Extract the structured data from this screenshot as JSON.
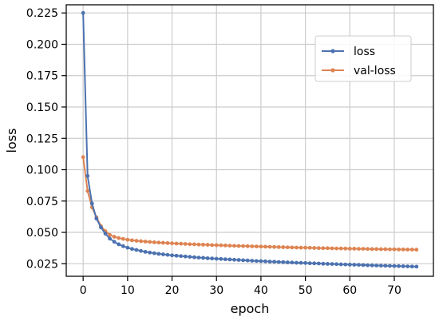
{
  "chart_data": {
    "type": "line",
    "xlabel": "epoch",
    "ylabel": "loss",
    "xlim": [
      -3.8,
      78.8
    ],
    "ylim": [
      0.015,
      0.2315
    ],
    "xticks": [
      0,
      10,
      20,
      30,
      40,
      50,
      60,
      70
    ],
    "yticks": [
      0.025,
      0.05,
      0.075,
      0.1,
      0.125,
      0.15,
      0.175,
      0.2,
      0.225
    ],
    "ytick_labels": [
      "0.025",
      "0.050",
      "0.075",
      "0.100",
      "0.125",
      "0.150",
      "0.175",
      "0.200",
      "0.225"
    ],
    "grid": true,
    "legend_position": "top-right",
    "series": [
      {
        "name": "loss",
        "color": "#4c72b0",
        "values": [
          0.225,
          0.095,
          0.073,
          0.061,
          0.054,
          0.049,
          0.045,
          0.0425,
          0.0405,
          0.039,
          0.0378,
          0.0368,
          0.036,
          0.0352,
          0.0345,
          0.0339,
          0.0334,
          0.0329,
          0.0325,
          0.0321,
          0.0317,
          0.0314,
          0.0311,
          0.0308,
          0.0305,
          0.0302,
          0.0299,
          0.0297,
          0.0294,
          0.0292,
          0.029,
          0.0288,
          0.0286,
          0.0284,
          0.0282,
          0.028,
          0.0278,
          0.0276,
          0.0274,
          0.0272,
          0.0271,
          0.0269,
          0.0267,
          0.0266,
          0.0264,
          0.0263,
          0.0261,
          0.026,
          0.0258,
          0.0257,
          0.0256,
          0.0254,
          0.0253,
          0.0252,
          0.025,
          0.0249,
          0.0248,
          0.0247,
          0.0245,
          0.0244,
          0.0243,
          0.0242,
          0.0241,
          0.024,
          0.0238,
          0.0237,
          0.0236,
          0.0235,
          0.0234,
          0.0233,
          0.0232,
          0.0231,
          0.023,
          0.0229,
          0.0228,
          0.0227
        ]
      },
      {
        "name": "val-loss",
        "color": "#dd8452",
        "values": [
          0.11,
          0.083,
          0.07,
          0.062,
          0.055,
          0.051,
          0.048,
          0.0465,
          0.0455,
          0.0448,
          0.0442,
          0.0437,
          0.0433,
          0.043,
          0.0427,
          0.0424,
          0.0421,
          0.0419,
          0.0417,
          0.0415,
          0.0413,
          0.0411,
          0.041,
          0.0408,
          0.0406,
          0.0405,
          0.0403,
          0.0402,
          0.0401,
          0.0399,
          0.0398,
          0.0397,
          0.0396,
          0.0394,
          0.0393,
          0.0392,
          0.0391,
          0.039,
          0.0389,
          0.0388,
          0.0387,
          0.0386,
          0.0385,
          0.0384,
          0.0383,
          0.0382,
          0.0381,
          0.038,
          0.0379,
          0.0378,
          0.0378,
          0.0377,
          0.0376,
          0.0375,
          0.0374,
          0.0374,
          0.0373,
          0.0372,
          0.0372,
          0.0371,
          0.037,
          0.037,
          0.0369,
          0.0369,
          0.0368,
          0.0367,
          0.0367,
          0.0366,
          0.0366,
          0.0365,
          0.0365,
          0.0364,
          0.0364,
          0.0363,
          0.0363,
          0.0362
        ]
      }
    ]
  }
}
